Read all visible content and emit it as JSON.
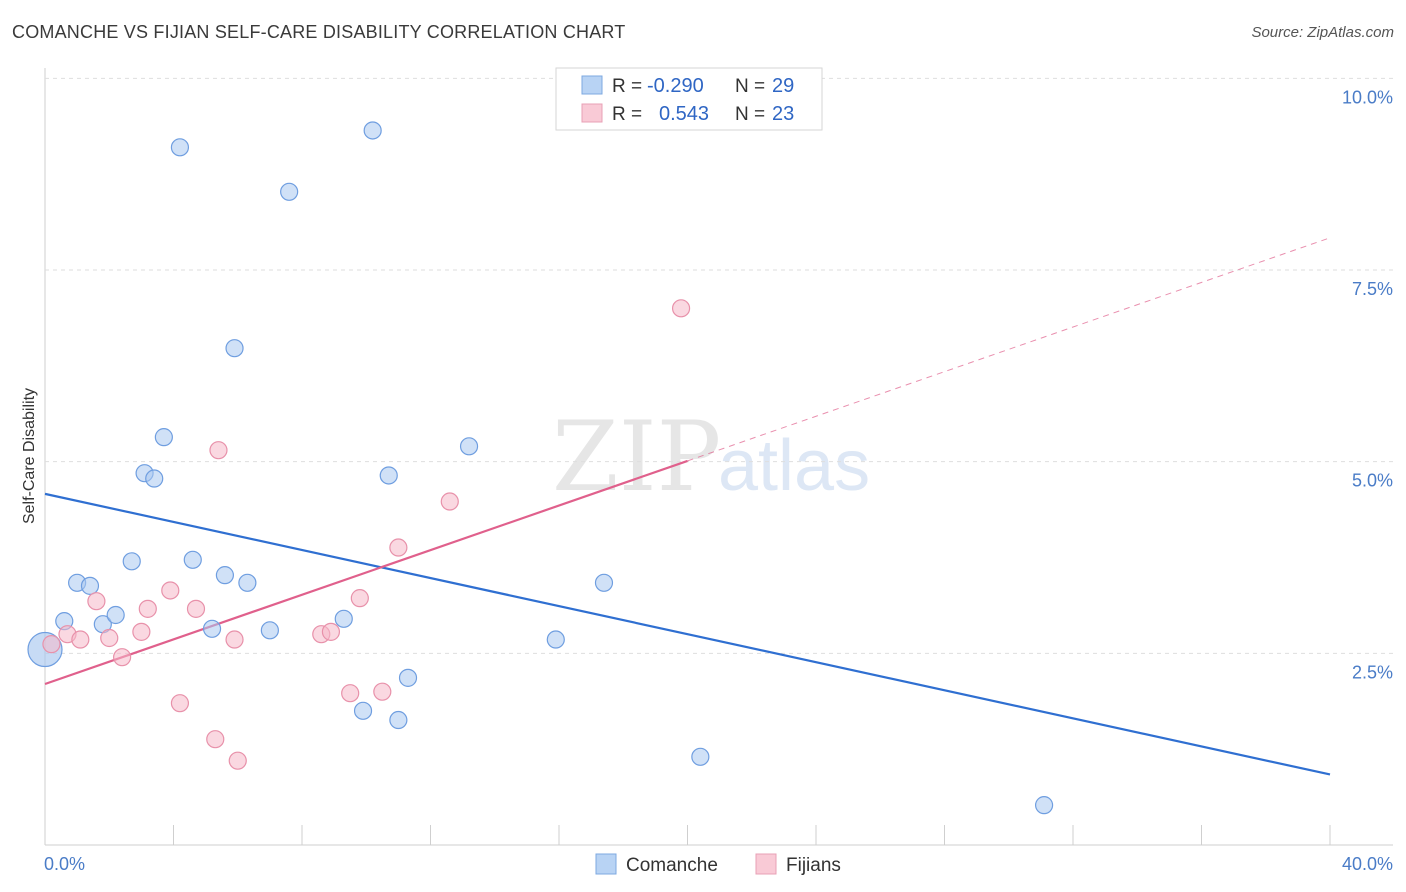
{
  "header": {
    "title": "COMANCHE VS FIJIAN SELF-CARE DISABILITY CORRELATION CHART",
    "source": "Source: ZipAtlas.com"
  },
  "watermark": {
    "zip": "ZIP",
    "atlas": "atlas"
  },
  "legend_box": {
    "rows": [
      {
        "r_label": "R =",
        "r_value": "-0.290",
        "n_label": "N =",
        "n_value": "29",
        "color": "#a9c8f0"
      },
      {
        "r_label": "R =",
        "r_value": " 0.543",
        "n_label": "N =",
        "n_value": "23",
        "color": "#f5b8c8"
      }
    ]
  },
  "bottom_legend": {
    "items": [
      {
        "label": "Comanche",
        "color": "#a9c8f0"
      },
      {
        "label": "Fijians",
        "color": "#f5b8c8"
      }
    ]
  },
  "chart_data": {
    "type": "scatter",
    "title": "COMANCHE VS FIJIAN SELF-CARE DISABILITY CORRELATION CHART",
    "xlabel": "",
    "ylabel": "Self-Care Disability",
    "xlim": [
      0,
      40
    ],
    "ylim": [
      0,
      10.5
    ],
    "x_tick_labels": [
      "0.0%",
      "40.0%"
    ],
    "y_ticks": [
      2.5,
      5.0,
      7.5,
      10.0
    ],
    "y_tick_labels": [
      "2.5%",
      "5.0%",
      "7.5%",
      "10.0%"
    ],
    "grid": true,
    "series": [
      {
        "name": "Comanche",
        "color": "#a9c8f0",
        "stroke": "#6f9ee0",
        "line_color": "#2f6fd1",
        "trend": {
          "x": [
            0,
            40
          ],
          "y": [
            4.58,
            0.92
          ],
          "dashed_from": null
        },
        "points": [
          [
            0.0,
            2.55
          ],
          [
            0.6,
            2.92
          ],
          [
            1.0,
            3.42
          ],
          [
            1.4,
            3.38
          ],
          [
            1.8,
            2.88
          ],
          [
            2.2,
            3.0
          ],
          [
            2.7,
            3.7
          ],
          [
            3.1,
            4.85
          ],
          [
            3.4,
            4.78
          ],
          [
            3.7,
            5.32
          ],
          [
            4.2,
            9.1
          ],
          [
            4.6,
            3.72
          ],
          [
            5.2,
            2.82
          ],
          [
            5.6,
            3.52
          ],
          [
            5.9,
            6.48
          ],
          [
            6.3,
            3.42
          ],
          [
            7.0,
            2.8
          ],
          [
            7.6,
            8.52
          ],
          [
            9.3,
            2.95
          ],
          [
            9.9,
            1.75
          ],
          [
            10.2,
            9.32
          ],
          [
            10.7,
            4.82
          ],
          [
            11.0,
            1.63
          ],
          [
            11.3,
            2.18
          ],
          [
            13.2,
            5.2
          ],
          [
            15.9,
            2.68
          ],
          [
            17.4,
            3.42
          ],
          [
            20.4,
            1.15
          ],
          [
            31.1,
            0.52
          ]
        ]
      },
      {
        "name": "Fijians",
        "color": "#f5b8c8",
        "stroke": "#e891aa",
        "line_color": "#e0608c",
        "trend": {
          "x": [
            0,
            40
          ],
          "y": [
            2.1,
            7.92
          ],
          "dashed_from": 20.0
        },
        "points": [
          [
            0.2,
            2.62
          ],
          [
            0.7,
            2.75
          ],
          [
            1.1,
            2.68
          ],
          [
            1.6,
            3.18
          ],
          [
            2.0,
            2.7
          ],
          [
            2.4,
            2.45
          ],
          [
            3.0,
            2.78
          ],
          [
            3.2,
            3.08
          ],
          [
            3.9,
            3.32
          ],
          [
            4.2,
            1.85
          ],
          [
            4.7,
            3.08
          ],
          [
            5.3,
            1.38
          ],
          [
            5.4,
            5.15
          ],
          [
            5.9,
            2.68
          ],
          [
            6.0,
            1.1
          ],
          [
            8.6,
            2.75
          ],
          [
            8.9,
            2.78
          ],
          [
            9.5,
            1.98
          ],
          [
            9.8,
            3.22
          ],
          [
            10.5,
            2.0
          ],
          [
            11.0,
            3.88
          ],
          [
            12.6,
            4.48
          ],
          [
            19.8,
            7.0
          ]
        ]
      }
    ]
  }
}
